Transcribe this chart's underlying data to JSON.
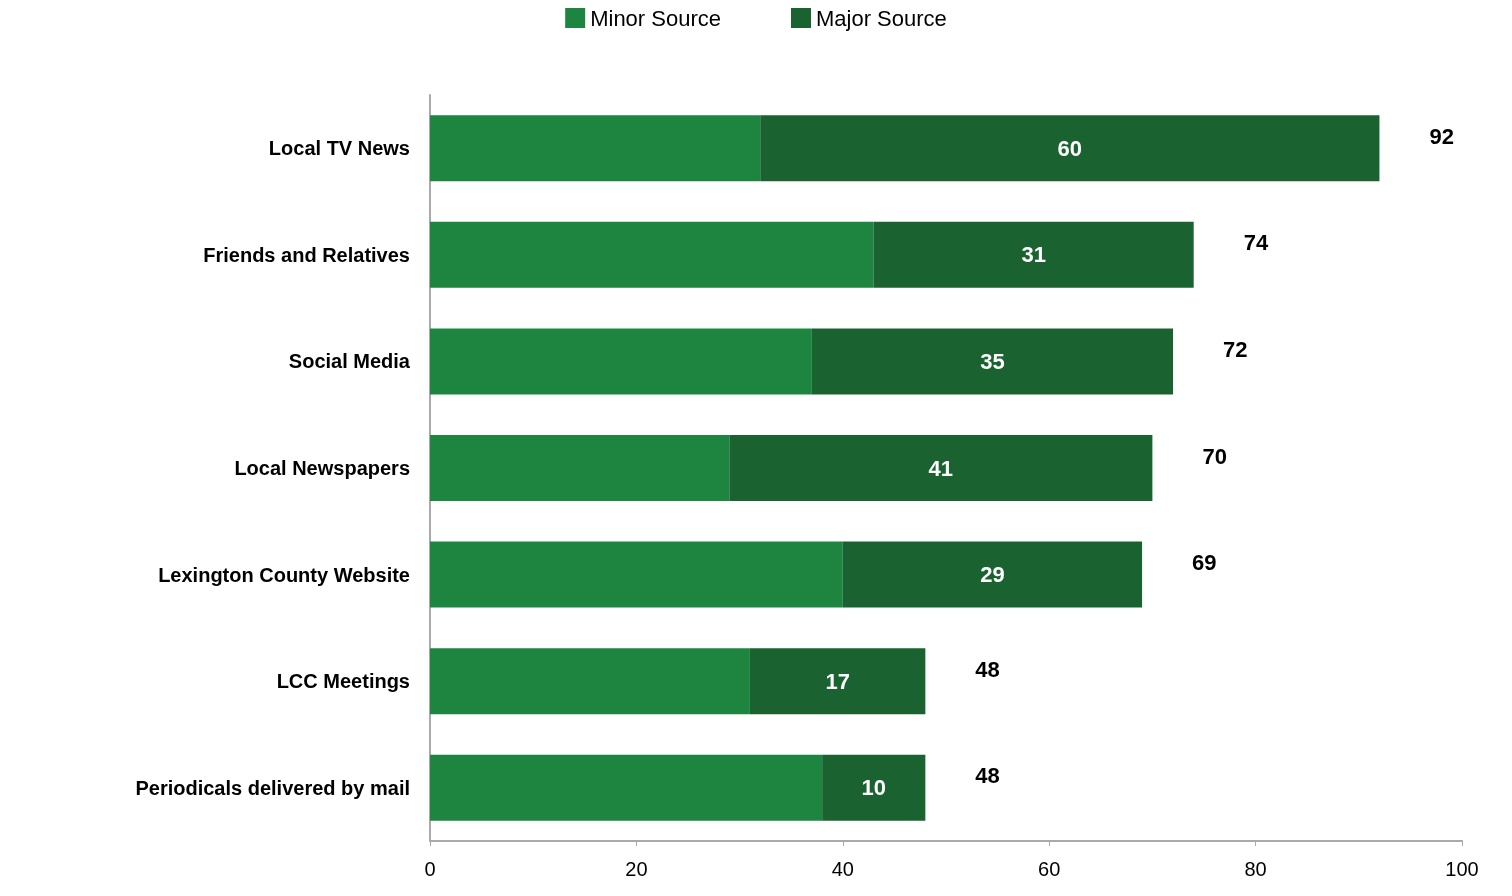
{
  "chart_data": {
    "type": "bar",
    "orientation": "horizontal",
    "stacked": true,
    "categories": [
      "Local TV News",
      "Friends and Relatives",
      "Social Media",
      "Local Newspapers",
      "Lexington County Website",
      "LCC Meetings",
      "Periodicals delivered by mail"
    ],
    "series": [
      {
        "name": "Minor Source",
        "color": "#1e8540",
        "values": [
          32,
          43,
          37,
          29,
          40,
          31,
          38
        ]
      },
      {
        "name": "Major Source",
        "color": "#1a6331",
        "values": [
          60,
          31,
          35,
          41,
          29,
          17,
          10
        ],
        "value_labels": [
          "60",
          "31",
          "35",
          "41",
          "29",
          "17",
          "10"
        ]
      }
    ],
    "totals": [
      "92",
      "74",
      "72",
      "70",
      "69",
      "48",
      "48"
    ],
    "xlim": [
      0,
      100
    ],
    "xticks": [
      0,
      20,
      40,
      60,
      80,
      100
    ],
    "grid": false,
    "legend": "top"
  }
}
